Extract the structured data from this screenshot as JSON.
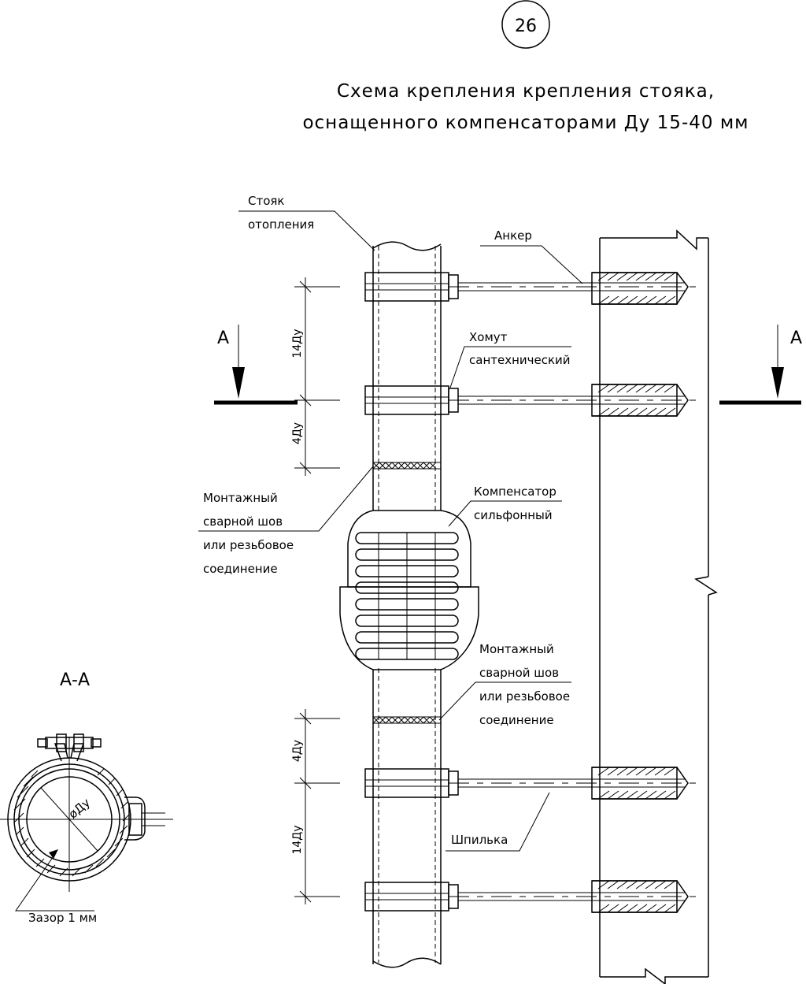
{
  "sheet_number": "26",
  "title": {
    "line1": "Схема крепления крепления стояка,",
    "line2": "оснащенного компенсаторами Ду 15-40 мм"
  },
  "labels": {
    "riser_line1": "Стояк",
    "riser_line2": "отопления",
    "anchor": "Анкер",
    "clamp_line1": "Хомут",
    "clamp_line2": "сантехнический",
    "weld_top_line1": "Монтажный",
    "weld_top_line2": "сварной шов",
    "weld_top_line3": "или резьбовое",
    "weld_top_line4": "соединение",
    "compensator_line1": "Компенсатор",
    "compensator_line2": "сильфонный",
    "weld_bottom_line1": "Монтажный",
    "weld_bottom_line2": "сварной шов",
    "weld_bottom_line3": "или резьбовое",
    "weld_bottom_line4": "соединение",
    "stud": "Шпилька",
    "gap": "Зазор 1 мм"
  },
  "section_marks": {
    "left": "А",
    "right": "А",
    "section_title": "А-А"
  },
  "dimensions": {
    "top_long": "14Ду",
    "top_short": "4Ду",
    "bottom_short": "4Ду",
    "bottom_long": "14Ду",
    "diameter": "øДу"
  }
}
